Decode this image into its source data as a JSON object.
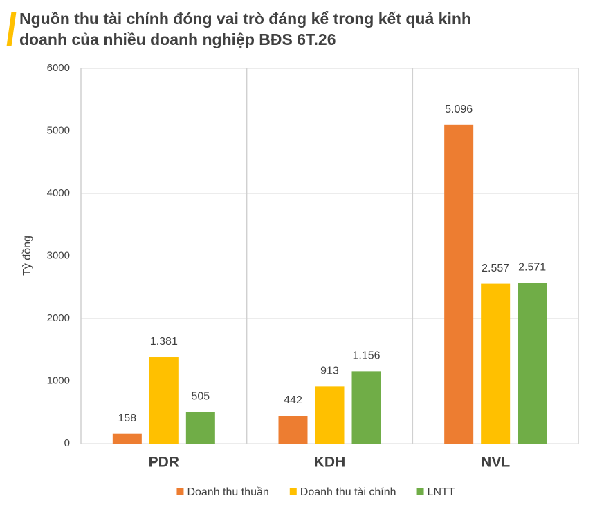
{
  "chart_data": {
    "type": "bar",
    "title": "Nguồn thu tài chính đóng vai trò đáng kể trong kết quả kinh doanh của nhiều doanh nghiệp BĐS 6T.26",
    "y_label": "Tỷ đồng",
    "categories": [
      "PDR",
      "KDH",
      "NVL"
    ],
    "series": [
      {
        "name": "Doanh thu thuần",
        "color": "#ED7D31",
        "values": [
          158,
          442,
          5096
        ],
        "value_labels": [
          "158",
          "442",
          "5.096"
        ]
      },
      {
        "name": "Doanh thu tài chính",
        "color": "#FFC000",
        "values": [
          1381,
          913,
          2557
        ],
        "value_labels": [
          "1.381",
          "913",
          "2.557"
        ]
      },
      {
        "name": "LNTT",
        "color": "#70AD47",
        "values": [
          505,
          1156,
          2571
        ],
        "value_labels": [
          "505",
          "1.156",
          "2.571"
        ]
      }
    ],
    "ylim": [
      0,
      6000
    ],
    "yticks": [
      0,
      1000,
      2000,
      3000,
      4000,
      5000,
      6000
    ],
    "grid": true,
    "legend": "bottom"
  }
}
